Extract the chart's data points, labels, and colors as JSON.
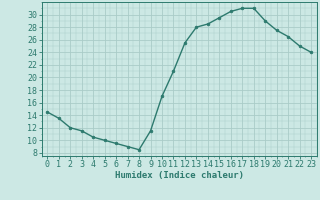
{
  "x": [
    0,
    1,
    2,
    3,
    4,
    5,
    6,
    7,
    8,
    9,
    10,
    11,
    12,
    13,
    14,
    15,
    16,
    17,
    18,
    19,
    20,
    21,
    22,
    23
  ],
  "y": [
    14.5,
    13.5,
    12.0,
    11.5,
    10.5,
    10.0,
    9.5,
    9.0,
    8.5,
    11.5,
    17.0,
    21.0,
    25.5,
    28.0,
    28.5,
    29.5,
    30.5,
    31.0,
    31.0,
    29.0,
    27.5,
    26.5,
    25.0,
    24.0
  ],
  "line_color": "#2d7a6e",
  "marker_color": "#2d7a6e",
  "bg_color": "#cce8e4",
  "grid_color_major": "#aaccc8",
  "xlabel": "Humidex (Indice chaleur)",
  "xlabel_fontsize": 6.5,
  "ylabel_ticks": [
    8,
    10,
    12,
    14,
    16,
    18,
    20,
    22,
    24,
    26,
    28,
    30
  ],
  "ylim": [
    7.5,
    32.0
  ],
  "xlim": [
    -0.5,
    23.5
  ],
  "tick_fontsize": 6.0
}
